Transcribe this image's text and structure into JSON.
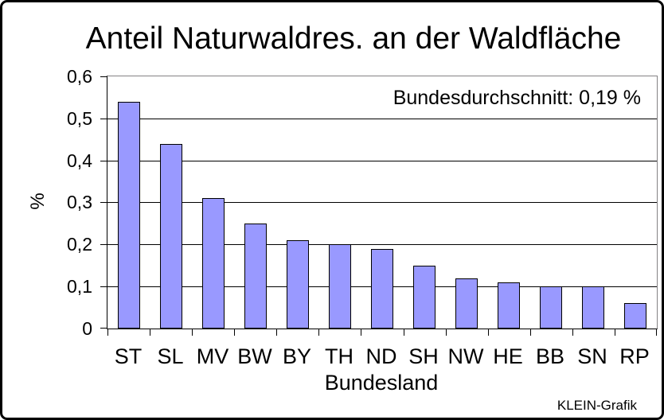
{
  "chart_data": {
    "type": "bar",
    "title": "Anteil Naturwaldres. an der Waldfläche",
    "xlabel": "Bundesland",
    "ylabel": "%",
    "categories": [
      "ST",
      "SL",
      "MV",
      "BW",
      "BY",
      "TH",
      "ND",
      "SH",
      "NW",
      "HE",
      "BB",
      "SN",
      "RP"
    ],
    "values": [
      0.54,
      0.44,
      0.31,
      0.25,
      0.21,
      0.2,
      0.19,
      0.15,
      0.12,
      0.11,
      0.1,
      0.1,
      0.06
    ],
    "ylim": [
      0,
      0.6
    ],
    "ytick_step": 0.1,
    "ytick_labels": [
      "0",
      "0,1",
      "0,2",
      "0,3",
      "0,4",
      "0,5",
      "0,6"
    ],
    "grid": true,
    "legend": "none",
    "annotation": "Bundesdurchschnitt: 0,19 %",
    "credit": "KLEIN-Grafik",
    "colors": {
      "bar_fill": "#9999FF",
      "bar_border": "#000000",
      "gridline": "#000000",
      "plot_border": "#848284",
      "axis": "#000000",
      "text": "#000000",
      "background": "#FFFFFF"
    }
  }
}
